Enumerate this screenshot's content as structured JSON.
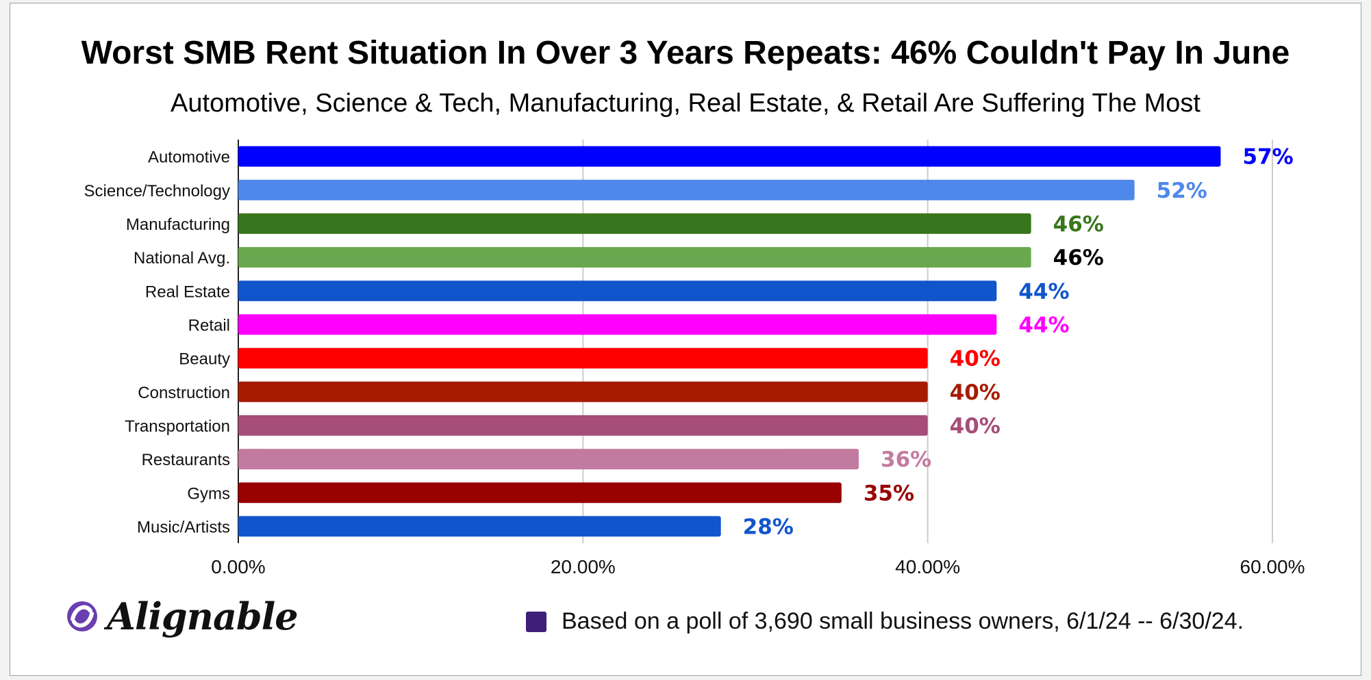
{
  "chart_data": {
    "type": "bar",
    "orientation": "horizontal",
    "title": "Worst SMB Rent Situation In Over 3 Years Repeats: 46% Couldn't Pay In June",
    "subtitle": "Automotive, Science & Tech, Manufacturing, Real Estate, & Retail Are Suffering The Most",
    "xlabel": "",
    "ylabel": "",
    "xlim": [
      0,
      0.6
    ],
    "ticks": [
      0,
      0.2,
      0.4,
      0.6
    ],
    "tick_labels": [
      "0.00%",
      "20.00%",
      "40.00%",
      "60.00%"
    ],
    "grid": true,
    "categories": [
      "Automotive",
      "Science/Technology",
      "Manufacturing",
      "National Avg.",
      "Real Estate",
      "Retail",
      "Beauty",
      "Construction",
      "Transportation",
      "Restaurants",
      "Gyms",
      "Music/Artists"
    ],
    "values": [
      0.57,
      0.52,
      0.46,
      0.46,
      0.44,
      0.44,
      0.4,
      0.4,
      0.4,
      0.36,
      0.35,
      0.28
    ],
    "data_labels": [
      "57%",
      "52%",
      "46%",
      "46%",
      "44%",
      "44%",
      "40%",
      "40%",
      "40%",
      "36%",
      "35%",
      "28%"
    ],
    "bar_colors": [
      "#0000ff",
      "#4e88ea",
      "#38761d",
      "#6aa84f",
      "#1155cc",
      "#ff00ff",
      "#ff0000",
      "#a61c00",
      "#a64d79",
      "#c27ba0",
      "#990000",
      "#1155cc"
    ],
    "label_colors": [
      "#0000ff",
      "#4e88ea",
      "#38761d",
      "#000000",
      "#1155cc",
      "#ff00ff",
      "#ff0000",
      "#a61c00",
      "#a64d79",
      "#c27ba0",
      "#990000",
      "#1155cc"
    ]
  },
  "brand": {
    "name": "Alignable",
    "logo_color": "#6a3fb0"
  },
  "footnote": {
    "text": "Based on a poll of 3,690 small business owners, 6/1/24 -- 6/30/24.",
    "swatch_color": "#3d1f7a"
  }
}
